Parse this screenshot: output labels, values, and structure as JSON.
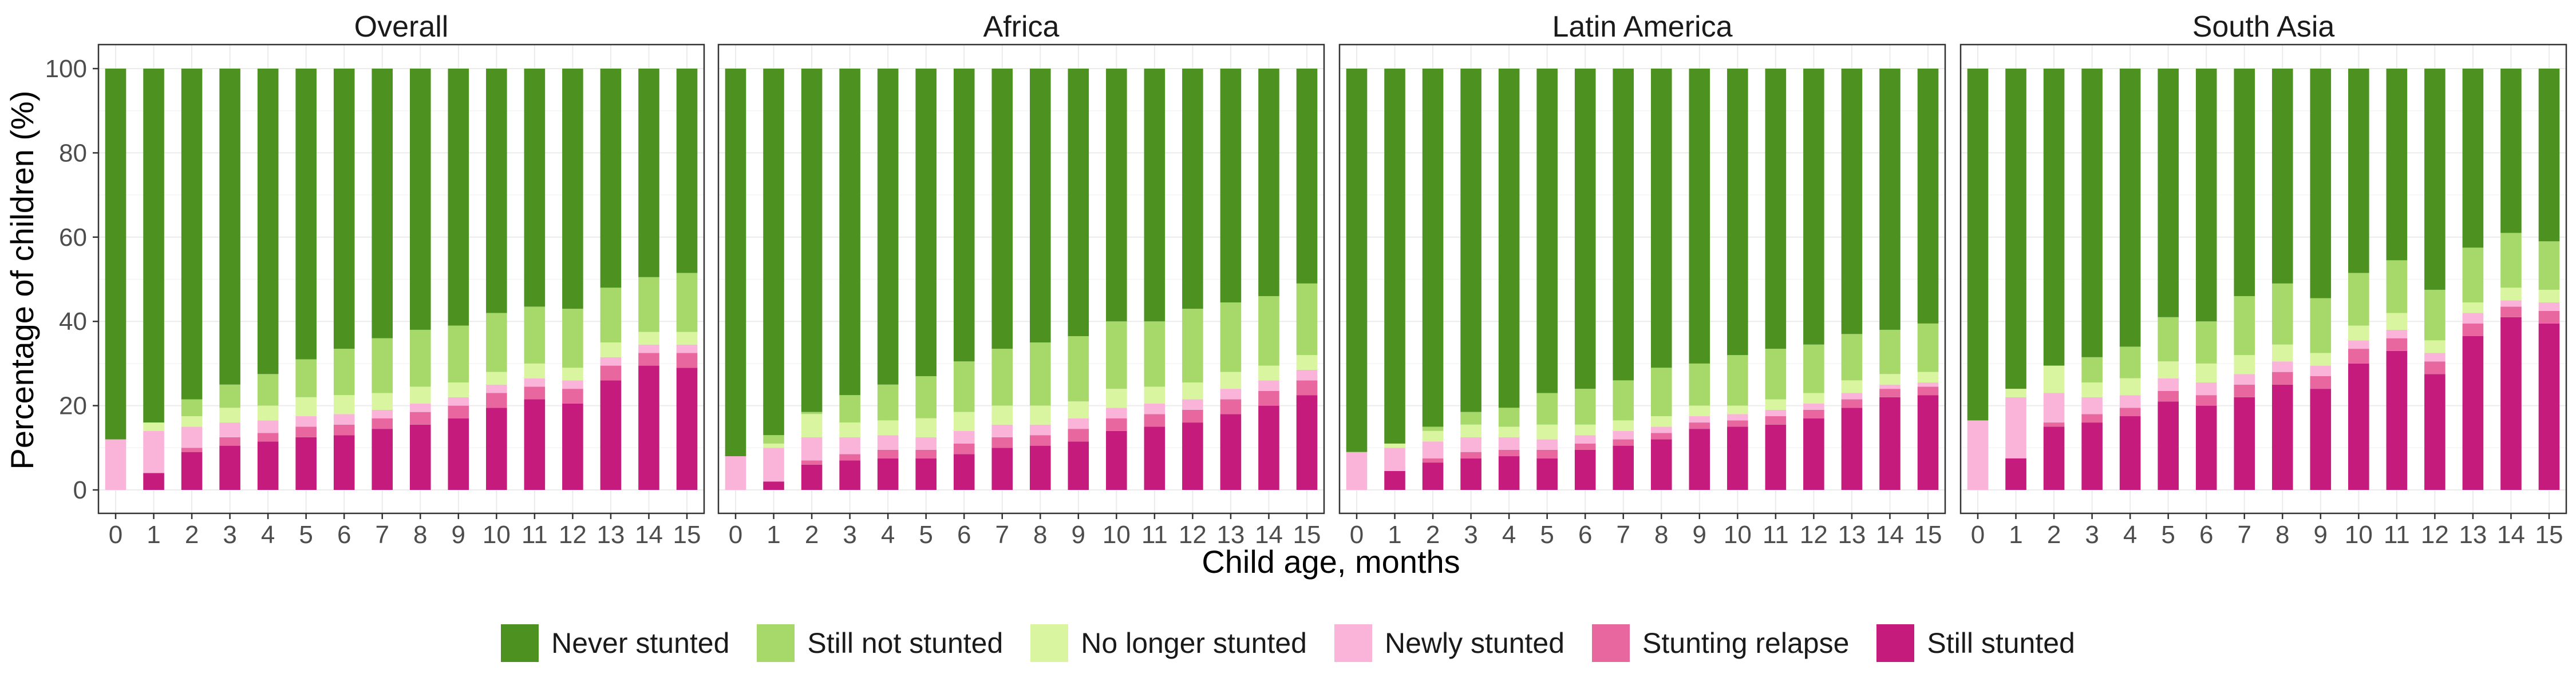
{
  "chart_data": {
    "type": "bar",
    "stacked": true,
    "facets": [
      "Overall",
      "Africa",
      "Latin America",
      "South Asia"
    ],
    "xlabel": "Child age, months",
    "ylabel": "Percentage of children (%)",
    "ylim": [
      0,
      100
    ],
    "yticks": [
      0,
      20,
      40,
      60,
      80,
      100
    ],
    "categories": [
      "0",
      "1",
      "2",
      "3",
      "4",
      "5",
      "6",
      "7",
      "8",
      "9",
      "10",
      "11",
      "12",
      "13",
      "14",
      "15"
    ],
    "grid": true,
    "legend_position": "bottom",
    "series": [
      {
        "name": "Still stunted",
        "color": "#c51b7d"
      },
      {
        "name": "Stunting relapse",
        "color": "#e9679f"
      },
      {
        "name": "Newly stunted",
        "color": "#fbb4d9"
      },
      {
        "name": "No longer stunted",
        "color": "#d9f5a0"
      },
      {
        "name": "Still not stunted",
        "color": "#a6d96a"
      },
      {
        "name": "Never stunted",
        "color": "#4d9221"
      }
    ],
    "legend_order": [
      "Never stunted",
      "Still not stunted",
      "No longer stunted",
      "Newly stunted",
      "Stunting relapse",
      "Still stunted"
    ],
    "panels": [
      {
        "title": "Overall",
        "values": {
          "Still stunted": [
            0,
            4,
            9,
            10.5,
            11.5,
            12.5,
            13,
            14.5,
            15.5,
            17,
            19.5,
            21.5,
            20.5,
            26,
            29.5,
            29
          ],
          "Stunting relapse": [
            0,
            0,
            1,
            2,
            2,
            2.5,
            2.5,
            2.5,
            3,
            3,
            3.5,
            3,
            3.5,
            3.5,
            3,
            3.5
          ],
          "Newly stunted": [
            12,
            10,
            5,
            3.5,
            3,
            2.5,
            2.5,
            2,
            2,
            2,
            2,
            2,
            2,
            2,
            2,
            2
          ],
          "No longer stunted": [
            0,
            2,
            2.5,
            3.5,
            3.5,
            4.5,
            4.5,
            4,
            4,
            3.5,
            3,
            3.5,
            3,
            3.5,
            3,
            3
          ],
          "Still not stunted": [
            0,
            0,
            4,
            5.5,
            7.5,
            9,
            11,
            13,
            13.5,
            13.5,
            14,
            13.5,
            14,
            13,
            13,
            14
          ],
          "Never stunted": [
            88,
            84,
            78.5,
            75,
            72.5,
            69,
            66.5,
            64,
            62,
            61,
            58,
            56.5,
            57,
            52,
            49.5,
            48.5
          ]
        }
      },
      {
        "title": "Africa",
        "values": {
          "Still stunted": [
            0,
            2,
            6,
            7,
            7.5,
            7.5,
            8.5,
            10,
            10.5,
            11.5,
            14,
            15,
            16,
            18,
            20,
            22.5
          ],
          "Stunting relapse": [
            0,
            0,
            1,
            1.5,
            2,
            2,
            2.5,
            2.5,
            2.5,
            3,
            3,
            3,
            3,
            3.5,
            3.5,
            3.5
          ],
          "Newly stunted": [
            8,
            8,
            5.5,
            4,
            3.5,
            3,
            3,
            3,
            2.5,
            2.5,
            2.5,
            2.5,
            2.5,
            2.5,
            2.5,
            2.5
          ],
          "No longer stunted": [
            0,
            1,
            5.5,
            3.5,
            3.5,
            4.5,
            4.5,
            4.5,
            4.5,
            4,
            4.5,
            4,
            4,
            4,
            3.5,
            3.5
          ],
          "Still not stunted": [
            0,
            2,
            0.5,
            6.5,
            8.5,
            10,
            12,
            13.5,
            15,
            15.5,
            16,
            15.5,
            17.5,
            16.5,
            16.5,
            17
          ],
          "Never stunted": [
            92,
            87,
            81.5,
            77.5,
            75,
            73,
            69.5,
            66.5,
            65,
            63.5,
            60,
            60,
            57,
            55.5,
            54,
            51
          ]
        }
      },
      {
        "title": "Latin America",
        "values": {
          "Still stunted": [
            0,
            4.5,
            6.5,
            7.5,
            8,
            7.5,
            9.5,
            10.5,
            12,
            14.5,
            15,
            15.5,
            17,
            19.5,
            22,
            22.5
          ],
          "Stunting relapse": [
            0,
            0,
            1,
            1.5,
            1.5,
            2,
            1.5,
            1.5,
            1.5,
            1.5,
            1.5,
            2,
            2,
            2,
            2,
            2
          ],
          "Newly stunted": [
            9,
            5.5,
            4,
            3.5,
            3,
            2.5,
            2,
            2,
            1.5,
            1.5,
            1.5,
            1.5,
            1.5,
            1.5,
            1,
            1
          ],
          "No longer stunted": [
            0,
            1,
            2.5,
            3,
            2.5,
            3.5,
            2.5,
            2.5,
            2.5,
            2.5,
            2,
            2.5,
            2.5,
            3,
            2.5,
            2.5
          ],
          "Still not stunted": [
            0,
            0,
            1,
            3,
            4.5,
            7.5,
            8.5,
            9.5,
            11.5,
            10,
            12,
            12,
            11.5,
            11,
            10.5,
            11.5
          ],
          "Never stunted": [
            91,
            89,
            85,
            81.5,
            80.5,
            77,
            76,
            74,
            71,
            70,
            68,
            66.5,
            65.5,
            63,
            62,
            60.5
          ]
        }
      },
      {
        "title": "South Asia",
        "values": {
          "Still stunted": [
            0,
            7.5,
            15,
            16,
            17.5,
            21,
            20,
            22,
            25,
            24,
            30,
            33,
            27.5,
            36.5,
            41,
            39.5
          ],
          "Stunting relapse": [
            0,
            0,
            1,
            2,
            2,
            2.5,
            2.5,
            3,
            3,
            3,
            3.5,
            3,
            3,
            3,
            2.5,
            3
          ],
          "Newly stunted": [
            16.5,
            14.5,
            7,
            4,
            3,
            3,
            3,
            2.5,
            2.5,
            2.5,
            2,
            2,
            2,
            2.5,
            1.5,
            2
          ],
          "No longer stunted": [
            0,
            2,
            6.5,
            3.5,
            4,
            4,
            4.5,
            4.5,
            4,
            3,
            3.5,
            4,
            3,
            2.5,
            3,
            3
          ],
          "Still not stunted": [
            0,
            0,
            0,
            6,
            7.5,
            10.5,
            10,
            14,
            14.5,
            13,
            12.5,
            12.5,
            12,
            13,
            13,
            11.5
          ],
          "Never stunted": [
            83.5,
            76,
            70.5,
            68.5,
            66,
            59,
            60,
            54,
            51,
            54.5,
            48.5,
            45.5,
            52.5,
            42.5,
            39,
            41
          ]
        }
      }
    ]
  }
}
